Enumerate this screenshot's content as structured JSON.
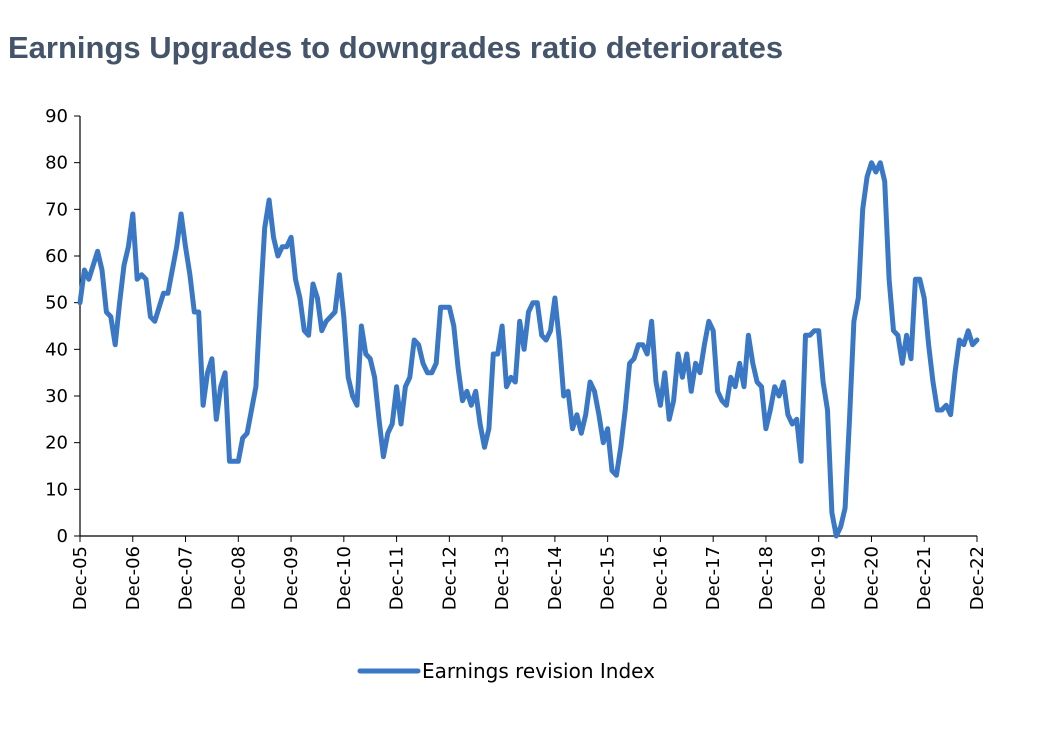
{
  "title": "Earnings Upgrades to downgrades ratio deteriorates",
  "colors": {
    "series": "#3a78c6",
    "title": "#44546a",
    "axis": "#000000"
  },
  "chart_data": {
    "type": "line",
    "title": "Earnings Upgrades to downgrades ratio deteriorates",
    "xlabel": "",
    "ylabel": "",
    "ylim": [
      0,
      90
    ],
    "yticks": [
      0,
      10,
      20,
      30,
      40,
      50,
      60,
      70,
      80,
      90
    ],
    "xlim": [
      0,
      204
    ],
    "xticks": [
      {
        "label": "Dec-05",
        "x": 0
      },
      {
        "label": "Dec-06",
        "x": 12
      },
      {
        "label": "Dec-07",
        "x": 24
      },
      {
        "label": "Dec-08",
        "x": 36
      },
      {
        "label": "Dec-09",
        "x": 48
      },
      {
        "label": "Dec-10",
        "x": 60
      },
      {
        "label": "Dec-11",
        "x": 72
      },
      {
        "label": "Dec-12",
        "x": 84
      },
      {
        "label": "Dec-13",
        "x": 96
      },
      {
        "label": "Dec-14",
        "x": 108
      },
      {
        "label": "Dec-15",
        "x": 120
      },
      {
        "label": "Dec-16",
        "x": 132
      },
      {
        "label": "Dec-17",
        "x": 144
      },
      {
        "label": "Dec-18",
        "x": 156
      },
      {
        "label": "Dec-19",
        "x": 168
      },
      {
        "label": "Dec-20",
        "x": 180
      },
      {
        "label": "Dec-21",
        "x": 192
      },
      {
        "label": "Dec-22",
        "x": 204
      }
    ],
    "legend": "bottom-center",
    "series": [
      {
        "name": "Earnings revision Index",
        "x_units": "months since Dec-05",
        "points": [
          [
            0,
            50
          ],
          [
            1,
            57
          ],
          [
            2,
            55
          ],
          [
            3,
            58
          ],
          [
            4,
            61
          ],
          [
            5,
            57
          ],
          [
            6,
            48
          ],
          [
            7,
            47
          ],
          [
            8,
            41
          ],
          [
            9,
            50
          ],
          [
            10,
            58
          ],
          [
            11,
            62
          ],
          [
            12,
            69
          ],
          [
            13,
            55
          ],
          [
            14,
            56
          ],
          [
            15,
            55
          ],
          [
            16,
            47
          ],
          [
            17,
            46
          ],
          [
            18,
            49
          ],
          [
            19,
            52
          ],
          [
            20,
            52
          ],
          [
            21,
            57
          ],
          [
            22,
            62
          ],
          [
            23,
            69
          ],
          [
            24,
            62
          ],
          [
            25,
            56
          ],
          [
            26,
            48
          ],
          [
            27,
            48
          ],
          [
            28,
            28
          ],
          [
            29,
            35
          ],
          [
            30,
            38
          ],
          [
            31,
            25
          ],
          [
            32,
            32
          ],
          [
            33,
            35
          ],
          [
            34,
            16
          ],
          [
            35,
            16
          ],
          [
            36,
            16
          ],
          [
            37,
            21
          ],
          [
            38,
            22
          ],
          [
            39,
            27
          ],
          [
            40,
            32
          ],
          [
            41,
            50
          ],
          [
            42,
            66
          ],
          [
            43,
            72
          ],
          [
            44,
            64
          ],
          [
            45,
            60
          ],
          [
            46,
            62
          ],
          [
            47,
            62
          ],
          [
            48,
            64
          ],
          [
            49,
            55
          ],
          [
            50,
            51
          ],
          [
            51,
            44
          ],
          [
            52,
            43
          ],
          [
            53,
            54
          ],
          [
            54,
            51
          ],
          [
            55,
            44
          ],
          [
            56,
            46
          ],
          [
            57,
            47
          ],
          [
            58,
            48
          ],
          [
            59,
            56
          ],
          [
            60,
            47
          ],
          [
            61,
            34
          ],
          [
            62,
            30
          ],
          [
            63,
            28
          ],
          [
            64,
            45
          ],
          [
            65,
            39
          ],
          [
            66,
            38
          ],
          [
            67,
            34
          ],
          [
            68,
            25
          ],
          [
            69,
            17
          ],
          [
            70,
            22
          ],
          [
            71,
            24
          ],
          [
            72,
            32
          ],
          [
            73,
            24
          ],
          [
            74,
            32
          ],
          [
            75,
            34
          ],
          [
            76,
            42
          ],
          [
            77,
            41
          ],
          [
            78,
            37
          ],
          [
            79,
            35
          ],
          [
            80,
            35
          ],
          [
            81,
            37
          ],
          [
            82,
            49
          ],
          [
            83,
            49
          ],
          [
            84,
            49
          ],
          [
            85,
            45
          ],
          [
            86,
            36
          ],
          [
            87,
            29
          ],
          [
            88,
            31
          ],
          [
            89,
            28
          ],
          [
            90,
            31
          ],
          [
            91,
            24
          ],
          [
            92,
            19
          ],
          [
            93,
            23
          ],
          [
            94,
            39
          ],
          [
            95,
            39
          ],
          [
            96,
            45
          ],
          [
            97,
            32
          ],
          [
            98,
            34
          ],
          [
            99,
            33
          ],
          [
            100,
            46
          ],
          [
            101,
            40
          ],
          [
            102,
            48
          ],
          [
            103,
            50
          ],
          [
            104,
            50
          ],
          [
            105,
            43
          ],
          [
            106,
            42
          ],
          [
            107,
            44
          ],
          [
            108,
            51
          ],
          [
            109,
            42
          ],
          [
            110,
            30
          ],
          [
            111,
            31
          ],
          [
            112,
            23
          ],
          [
            113,
            26
          ],
          [
            114,
            22
          ],
          [
            115,
            26
          ],
          [
            116,
            33
          ],
          [
            117,
            31
          ],
          [
            118,
            26
          ],
          [
            119,
            20
          ],
          [
            120,
            23
          ],
          [
            121,
            14
          ],
          [
            122,
            13
          ],
          [
            123,
            19
          ],
          [
            124,
            27
          ],
          [
            125,
            37
          ],
          [
            126,
            38
          ],
          [
            127,
            41
          ],
          [
            128,
            41
          ],
          [
            129,
            39
          ],
          [
            130,
            46
          ],
          [
            131,
            33
          ],
          [
            132,
            28
          ],
          [
            133,
            35
          ],
          [
            134,
            25
          ],
          [
            135,
            29
          ],
          [
            136,
            39
          ],
          [
            137,
            34
          ],
          [
            138,
            39
          ],
          [
            139,
            31
          ],
          [
            140,
            37
          ],
          [
            141,
            35
          ],
          [
            142,
            41
          ],
          [
            143,
            46
          ],
          [
            144,
            44
          ],
          [
            145,
            31
          ],
          [
            146,
            29
          ],
          [
            147,
            28
          ],
          [
            148,
            34
          ],
          [
            149,
            32
          ],
          [
            150,
            37
          ],
          [
            151,
            32
          ],
          [
            152,
            43
          ],
          [
            153,
            37
          ],
          [
            154,
            33
          ],
          [
            155,
            32
          ],
          [
            156,
            23
          ],
          [
            157,
            27
          ],
          [
            158,
            32
          ],
          [
            159,
            30
          ],
          [
            160,
            33
          ],
          [
            161,
            26
          ],
          [
            162,
            24
          ],
          [
            163,
            25
          ],
          [
            164,
            16
          ],
          [
            165,
            43
          ],
          [
            166,
            43
          ],
          [
            167,
            44
          ],
          [
            168,
            44
          ],
          [
            169,
            33
          ],
          [
            170,
            27
          ],
          [
            171,
            5
          ],
          [
            172,
            0
          ],
          [
            173,
            2
          ],
          [
            174,
            6
          ],
          [
            175,
            25
          ],
          [
            176,
            46
          ],
          [
            177,
            51
          ],
          [
            178,
            70
          ],
          [
            179,
            77
          ],
          [
            180,
            80
          ],
          [
            181,
            78
          ],
          [
            182,
            80
          ],
          [
            183,
            76
          ],
          [
            184,
            55
          ],
          [
            185,
            44
          ],
          [
            186,
            43
          ],
          [
            187,
            37
          ],
          [
            188,
            43
          ],
          [
            189,
            38
          ],
          [
            190,
            55
          ],
          [
            191,
            55
          ],
          [
            192,
            51
          ],
          [
            193,
            41
          ],
          [
            194,
            33
          ],
          [
            195,
            27
          ],
          [
            196,
            27
          ],
          [
            197,
            28
          ],
          [
            198,
            26
          ],
          [
            199,
            35
          ],
          [
            200,
            42
          ],
          [
            201,
            41
          ],
          [
            202,
            44
          ],
          [
            203,
            41
          ],
          [
            204,
            42
          ]
        ]
      }
    ]
  }
}
